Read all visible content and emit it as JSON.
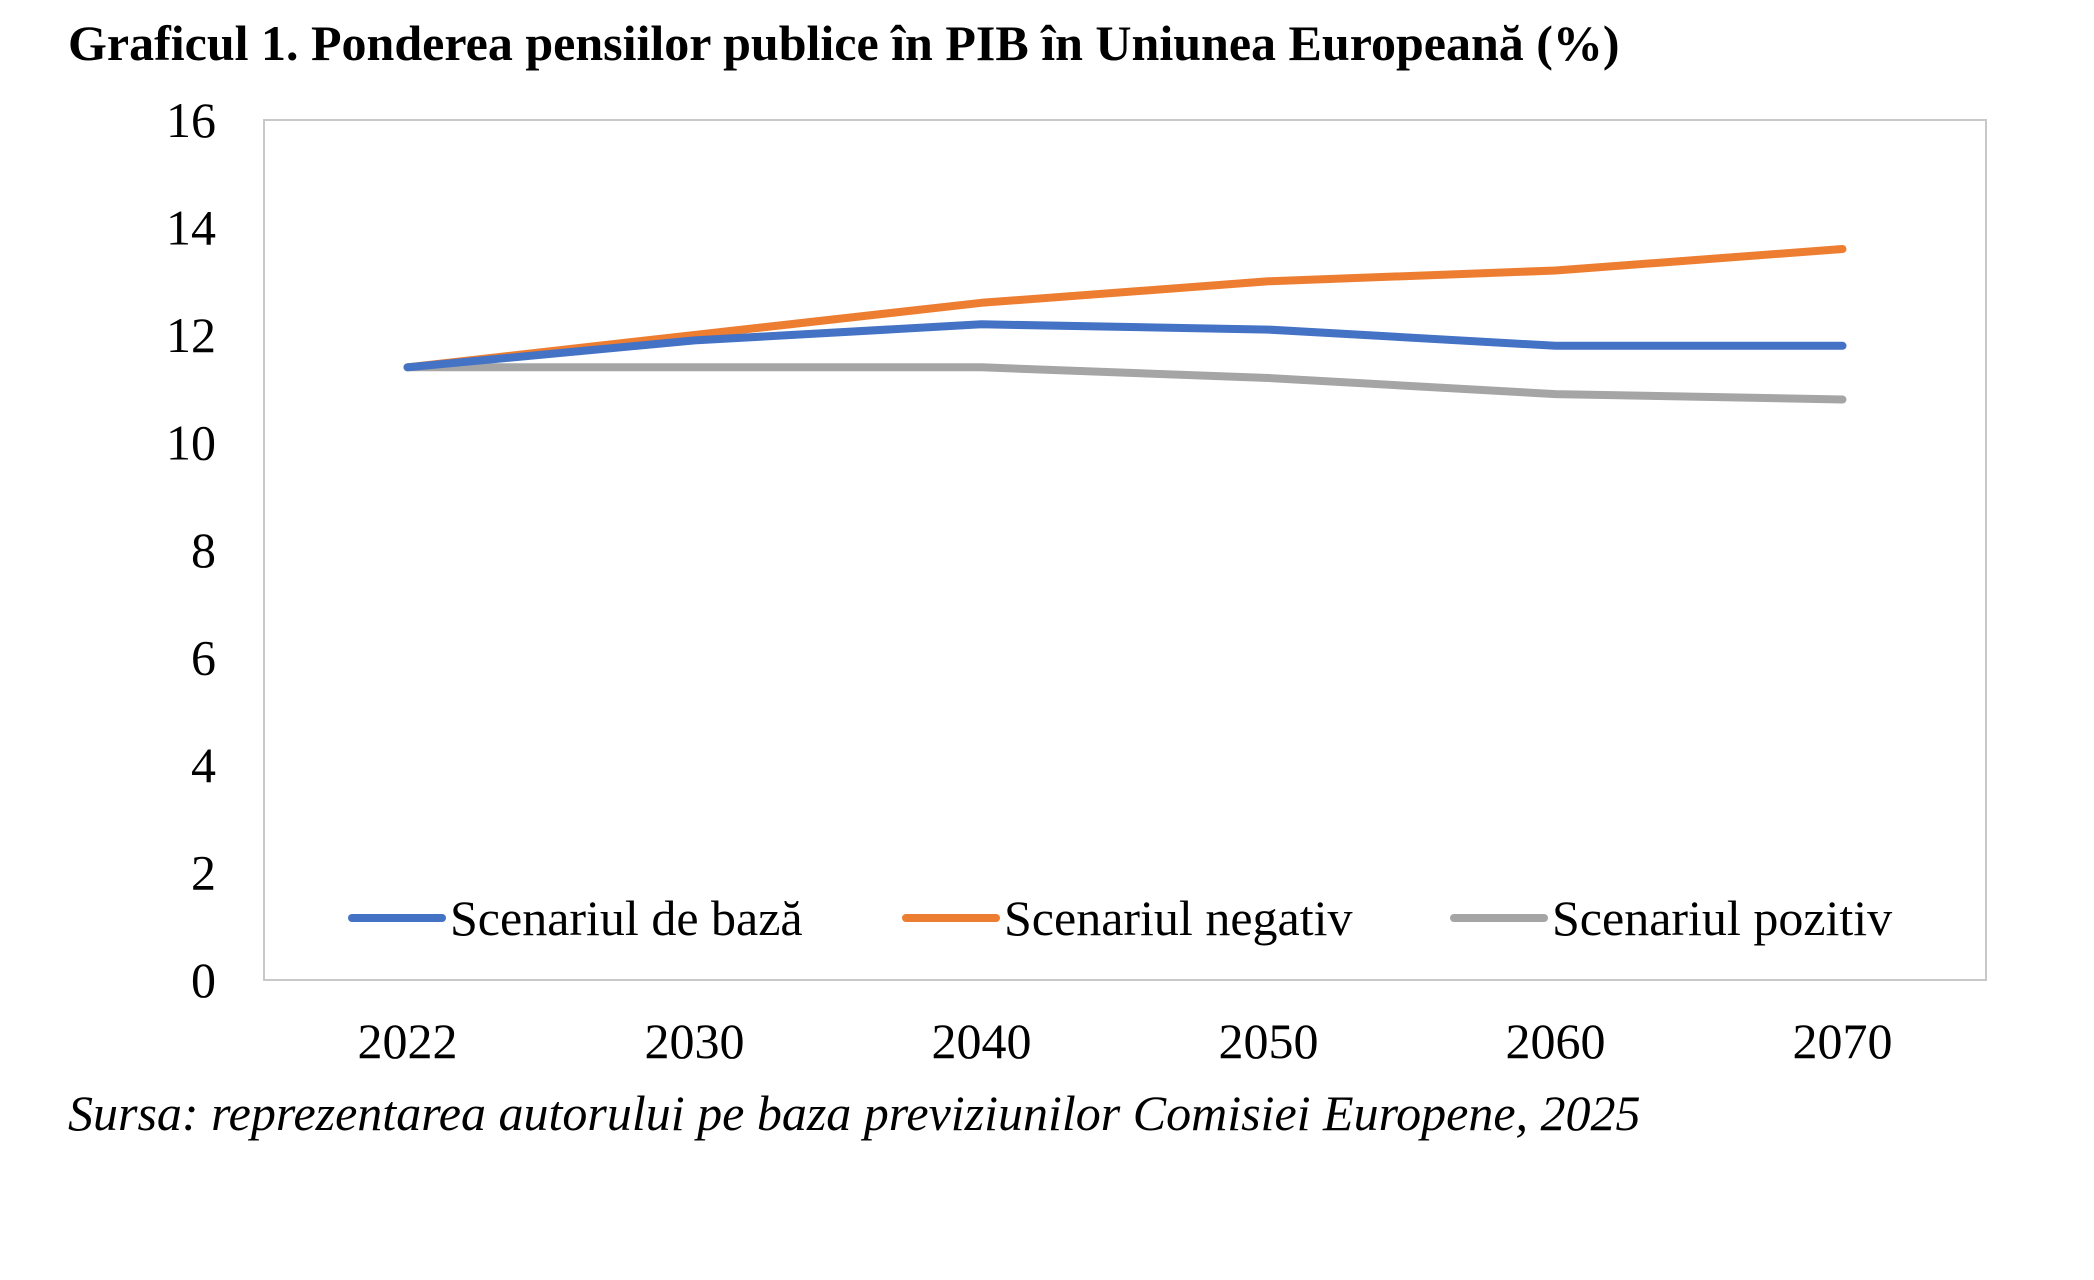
{
  "title": "Graficul 1. Ponderea pensiilor publice în PIB în Uniunea Europeană (%)",
  "source": "Sursa: reprezentarea autorului pe baza previziunilor Comisiei Europene, 2025",
  "chart_data": {
    "type": "line",
    "title": "Graficul 1. Ponderea pensiilor publice în PIB în Uniunea Europeană (%)",
    "xlabel": "",
    "ylabel": "",
    "categories": [
      "2022",
      "2030",
      "2040",
      "2050",
      "2060",
      "2070"
    ],
    "ylim": [
      0,
      16
    ],
    "yticks": [
      0,
      2,
      4,
      6,
      8,
      10,
      12,
      14,
      16
    ],
    "grid": false,
    "legend_position": "bottom-inside",
    "series": [
      {
        "name": "Scenariul de bază",
        "color": "#4472C4",
        "values": [
          11.4,
          11.9,
          12.2,
          12.1,
          11.8,
          11.8
        ]
      },
      {
        "name": "Scenariul negativ",
        "color": "#ED7D31",
        "values": [
          11.4,
          12.0,
          12.6,
          13.0,
          13.2,
          13.6
        ]
      },
      {
        "name": "Scenariul pozitiv",
        "color": "#A5A5A5",
        "values": [
          11.4,
          11.4,
          11.4,
          11.2,
          10.9,
          10.8
        ]
      }
    ]
  }
}
